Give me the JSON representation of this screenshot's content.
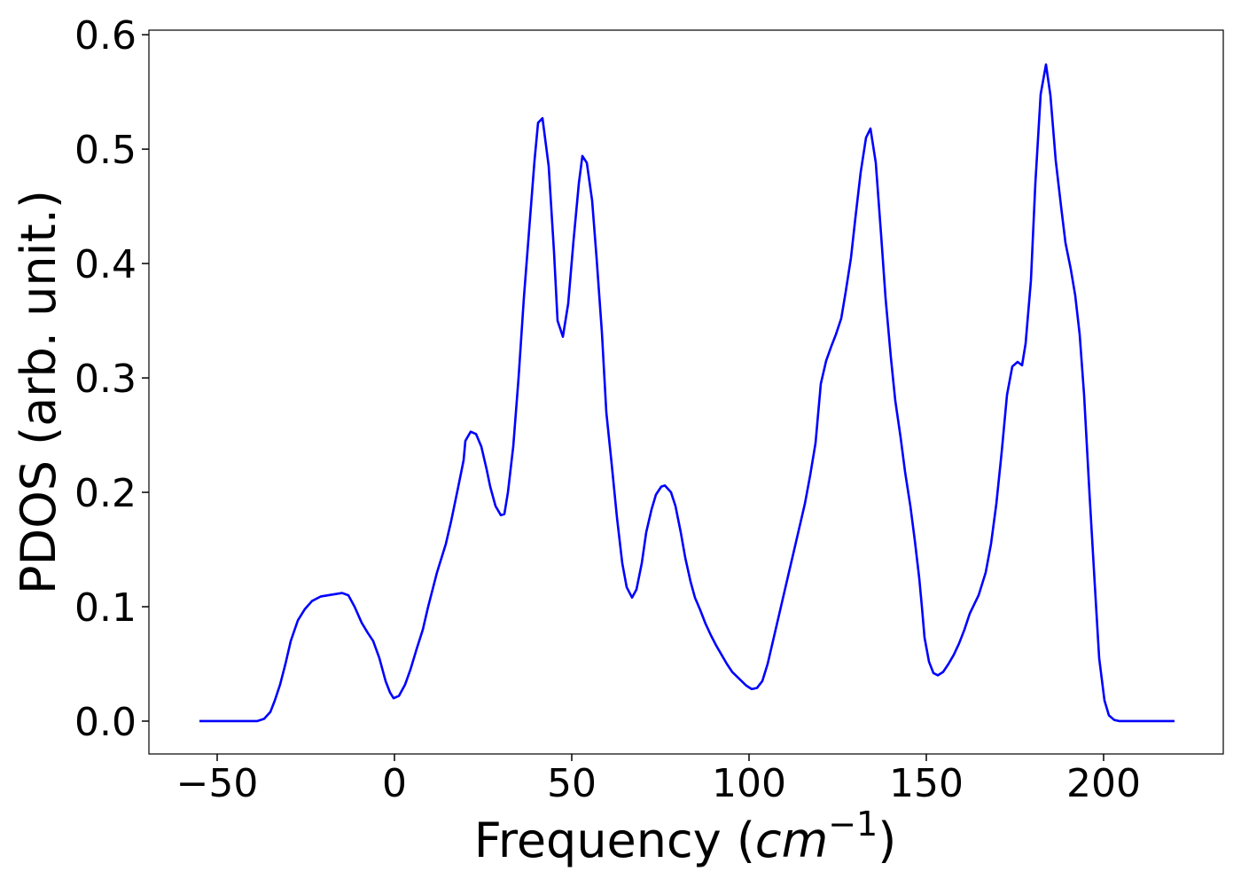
{
  "chart_data": {
    "type": "line",
    "xlabel": [
      "Frequency (",
      "cm",
      "−1",
      ")"
    ],
    "ylabel": "PDOS (arb. unit.)",
    "xlim": [
      -69.25,
      233.75
    ],
    "ylim": [
      -0.0287,
      0.604
    ],
    "xticks": [
      {
        "value": -50,
        "label": "−50"
      },
      0,
      50,
      100,
      150,
      200
    ],
    "yticks": [
      {
        "value": 0,
        "label": "0.0"
      },
      0.1,
      0.2,
      0.3,
      0.4,
      0.5,
      0.6
    ],
    "grid": false,
    "series": [
      {
        "color": "#0000ff",
        "x": [
          -55,
          -38.75,
          -36.75,
          -35,
          -33.75,
          -32.25,
          -30.75,
          -29.25,
          -27.25,
          -25.25,
          -23.25,
          -20.75,
          -16.75,
          -14.75,
          -13,
          -11.25,
          -9.25,
          -7.5,
          -6,
          -4.25,
          -2.5,
          -1.25,
          -0.25,
          1.25,
          3,
          4.5,
          6.25,
          8,
          9.5,
          12,
          14.5,
          16,
          18,
          19.5,
          20,
          21.5,
          23,
          24.5,
          26,
          27,
          28.5,
          30,
          31,
          32,
          33.5,
          35,
          36.5,
          38,
          39.5,
          40.5,
          41.75,
          43.5,
          45,
          46,
          47.5,
          49,
          50.5,
          52,
          53,
          54.25,
          55.75,
          57,
          58.5,
          59.75,
          61.25,
          62.75,
          64.25,
          65.5,
          67,
          68.25,
          69.75,
          71,
          72.5,
          73.75,
          75.25,
          76.25,
          78,
          79.25,
          80.75,
          82,
          83.5,
          84.75,
          86.25,
          87.75,
          89.25,
          90.75,
          92.25,
          93.75,
          95.25,
          97.25,
          99.25,
          100.75,
          102.25,
          103.75,
          105.25,
          106.75,
          108.25,
          109.75,
          111.25,
          112.75,
          114.25,
          115.75,
          117.25,
          118.75,
          120.25,
          121.75,
          123.25,
          124.5,
          126,
          127.25,
          128.75,
          130,
          131.5,
          133,
          134.25,
          135.75,
          137.25,
          138.5,
          140,
          141.25,
          142.75,
          144,
          145.5,
          146.75,
          148,
          148.75,
          149.5,
          150.75,
          152,
          153.25,
          154.75,
          156.25,
          157.75,
          159.25,
          160.75,
          162.25,
          164.75,
          166.75,
          168.25,
          169.75,
          171.25,
          172.75,
          174.25,
          175.75,
          177,
          178,
          179.5,
          180.75,
          182.25,
          183.75,
          185,
          186.5,
          188,
          189.25,
          190.75,
          192,
          193.25,
          194.5,
          196,
          197.5,
          198.75,
          200.25,
          201.5,
          203,
          204.5,
          220
        ],
        "values": [
          0,
          0,
          0.002,
          0.008,
          0.018,
          0.032,
          0.05,
          0.07,
          0.088,
          0.098,
          0.105,
          0.109,
          0.111,
          0.112,
          0.11,
          0.1,
          0.086,
          0.077,
          0.07,
          0.055,
          0.035,
          0.025,
          0.02,
          0.022,
          0.032,
          0.045,
          0.063,
          0.08,
          0.1,
          0.13,
          0.155,
          0.175,
          0.205,
          0.228,
          0.245,
          0.253,
          0.251,
          0.24,
          0.22,
          0.205,
          0.188,
          0.18,
          0.181,
          0.2,
          0.24,
          0.3,
          0.37,
          0.43,
          0.49,
          0.523,
          0.527,
          0.485,
          0.41,
          0.35,
          0.336,
          0.365,
          0.42,
          0.47,
          0.494,
          0.488,
          0.455,
          0.405,
          0.34,
          0.27,
          0.225,
          0.178,
          0.138,
          0.117,
          0.108,
          0.115,
          0.138,
          0.165,
          0.185,
          0.198,
          0.205,
          0.206,
          0.2,
          0.188,
          0.165,
          0.143,
          0.122,
          0.108,
          0.097,
          0.085,
          0.075,
          0.066,
          0.058,
          0.05,
          0.043,
          0.037,
          0.031,
          0.028,
          0.029,
          0.035,
          0.05,
          0.07,
          0.09,
          0.11,
          0.13,
          0.15,
          0.17,
          0.19,
          0.215,
          0.243,
          0.295,
          0.315,
          0.328,
          0.338,
          0.352,
          0.375,
          0.405,
          0.44,
          0.48,
          0.51,
          0.518,
          0.488,
          0.425,
          0.37,
          0.318,
          0.28,
          0.248,
          0.218,
          0.188,
          0.158,
          0.125,
          0.1,
          0.073,
          0.052,
          0.042,
          0.04,
          0.043,
          0.05,
          0.058,
          0.068,
          0.08,
          0.094,
          0.11,
          0.13,
          0.155,
          0.19,
          0.235,
          0.285,
          0.31,
          0.314,
          0.311,
          0.33,
          0.385,
          0.47,
          0.548,
          0.574,
          0.547,
          0.49,
          0.45,
          0.418,
          0.395,
          0.372,
          0.338,
          0.285,
          0.2,
          0.12,
          0.055,
          0.018,
          0.005,
          0.001,
          0,
          0
        ]
      }
    ]
  }
}
